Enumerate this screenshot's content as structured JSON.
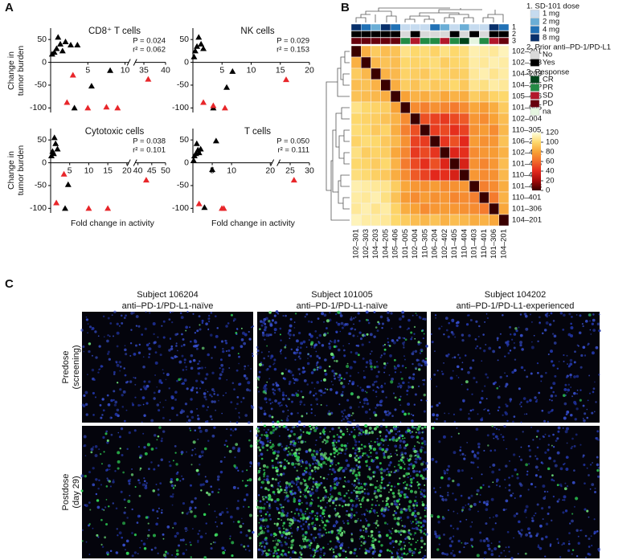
{
  "panel_labels": [
    "A",
    "B",
    "C"
  ],
  "panel_a": {
    "y_label": [
      "Change in",
      "tumor burden"
    ],
    "x_label": "Fold change in activity"
  },
  "chart_data": [
    {
      "type": "scatter",
      "title": "CD8⁺ T cells",
      "stats": [
        "P = 0.024",
        "r² = 0.062"
      ],
      "xlim": [
        0,
        40
      ],
      "xbreak": [
        10.5,
        33
      ],
      "xticks": [
        5,
        10,
        35,
        40
      ],
      "ylim": [
        -110,
        75
      ],
      "yticks": [
        50,
        0,
        -50,
        -100
      ],
      "series": [
        {
          "color": "#000000",
          "x": [
            0.2,
            0.5,
            0.8,
            1.0,
            1.3,
            1.6,
            2.0,
            2.7,
            3.6,
            3.2,
            5.5,
            8.0
          ],
          "values": [
            18,
            22,
            30,
            55,
            40,
            25,
            45,
            38,
            38,
            -100,
            -52,
            -18
          ]
        },
        {
          "color": "#e8262a",
          "x": [
            2.2,
            3.0,
            5.0,
            7.5,
            9.0,
            36
          ],
          "values": [
            -88,
            -28,
            -100,
            -98,
            -100,
            -37
          ]
        }
      ]
    },
    {
      "type": "scatter",
      "title": "NK cells",
      "stats": [
        "P = 0.029",
        "r² = 0.153"
      ],
      "xlim": [
        0,
        20
      ],
      "xticks": [
        5,
        10,
        15,
        20
      ],
      "ylim": [
        -110,
        75
      ],
      "yticks": [
        50,
        0,
        -50,
        -100
      ],
      "series": [
        {
          "color": "#000000",
          "x": [
            0.2,
            0.4,
            0.7,
            1.0,
            1.4,
            1.8,
            5.8,
            6.8,
            3.5
          ],
          "values": [
            12,
            25,
            35,
            55,
            40,
            30,
            -55,
            -20,
            -100
          ]
        },
        {
          "color": "#e8262a",
          "x": [
            1.8,
            3.5,
            5.5,
            16
          ],
          "values": [
            -88,
            -95,
            -100,
            -38
          ]
        }
      ]
    },
    {
      "type": "scatter",
      "title": "Cytotoxic cells",
      "stats": [
        "P = 0.038",
        "r² = 0.101"
      ],
      "xlim": [
        0,
        50
      ],
      "xbreak": [
        20.5,
        39
      ],
      "xticks": [
        5,
        10,
        15,
        20,
        40,
        45,
        50
      ],
      "ylim": [
        -110,
        75
      ],
      "yticks": [
        50,
        0,
        -50,
        -100
      ],
      "series": [
        {
          "color": "#000000",
          "x": [
            0.2,
            0.5,
            0.8,
            1.0,
            1.3,
            1.8,
            3.8,
            4.6
          ],
          "values": [
            15,
            25,
            20,
            55,
            42,
            30,
            -100,
            -48
          ]
        },
        {
          "color": "#e8262a",
          "x": [
            1.5,
            3.5,
            10,
            15,
            43
          ],
          "values": [
            -88,
            -25,
            -100,
            -100,
            -38
          ]
        }
      ]
    },
    {
      "type": "scatter",
      "title": "T cells",
      "stats": [
        "P = 0.050",
        "r² = 0.111"
      ],
      "xlim": [
        0,
        30
      ],
      "xbreak": [
        20.5,
        22
      ],
      "xticks": [
        5,
        10,
        20,
        25,
        30
      ],
      "ylim": [
        -110,
        75
      ],
      "yticks": [
        50,
        0,
        -50,
        -100
      ],
      "series": [
        {
          "color": "#000000",
          "x": [
            0.2,
            0.4,
            0.8,
            1.0,
            1.3,
            1.6,
            2.0,
            5.0,
            6.0,
            3.0
          ],
          "values": [
            5,
            15,
            20,
            42,
            28,
            22,
            30,
            -15,
            48,
            -98
          ]
        },
        {
          "color": "#e8262a",
          "x": [
            1.6,
            7.5,
            8.0,
            26
          ],
          "values": [
            -90,
            -100,
            -100,
            -38
          ]
        }
      ]
    },
    {
      "type": "heatmap",
      "categories": [
        "102–301",
        "102–303",
        "104–203",
        "104–205",
        "105–406",
        "101–005",
        "102–004",
        "110–305",
        "106–204",
        "102–402",
        "101–405",
        "110–404",
        "101–403",
        "110–401",
        "101–306",
        "104–201"
      ],
      "values": [
        [
          0,
          85,
          95,
          90,
          92,
          105,
          100,
          102,
          98,
          104,
          100,
          103,
          112,
          110,
          108,
          114
        ],
        [
          85,
          0,
          88,
          92,
          90,
          100,
          98,
          100,
          102,
          96,
          99,
          101,
          110,
          108,
          112,
          110
        ],
        [
          95,
          88,
          0,
          86,
          88,
          98,
          96,
          94,
          100,
          98,
          95,
          97,
          108,
          112,
          106,
          110
        ],
        [
          90,
          92,
          86,
          0,
          84,
          96,
          92,
          98,
          94,
          96,
          100,
          94,
          106,
          104,
          110,
          108
        ],
        [
          92,
          90,
          88,
          84,
          0,
          80,
          86,
          84,
          88,
          82,
          86,
          84,
          96,
          92,
          98,
          100
        ],
        [
          105,
          100,
          98,
          96,
          80,
          0,
          72,
          68,
          74,
          70,
          66,
          72,
          82,
          78,
          84,
          95
        ],
        [
          100,
          98,
          96,
          92,
          86,
          72,
          0,
          52,
          48,
          45,
          50,
          55,
          76,
          72,
          80,
          90
        ],
        [
          102,
          100,
          94,
          98,
          84,
          68,
          52,
          0,
          46,
          50,
          42,
          48,
          74,
          78,
          72,
          88
        ],
        [
          98,
          102,
          100,
          94,
          88,
          74,
          48,
          46,
          0,
          44,
          52,
          40,
          78,
          74,
          76,
          92
        ],
        [
          104,
          96,
          98,
          96,
          82,
          70,
          45,
          50,
          44,
          0,
          38,
          42,
          72,
          76,
          78,
          86
        ],
        [
          100,
          99,
          95,
          100,
          86,
          66,
          50,
          42,
          52,
          38,
          0,
          36,
          74,
          70,
          76,
          90
        ],
        [
          103,
          101,
          97,
          94,
          84,
          72,
          55,
          48,
          40,
          42,
          36,
          0,
          76,
          72,
          74,
          88
        ],
        [
          112,
          110,
          108,
          106,
          96,
          82,
          76,
          74,
          78,
          72,
          74,
          76,
          0,
          68,
          72,
          84
        ],
        [
          110,
          108,
          112,
          104,
          92,
          78,
          72,
          78,
          74,
          76,
          70,
          72,
          68,
          0,
          66,
          86
        ],
        [
          108,
          112,
          106,
          110,
          98,
          84,
          80,
          72,
          76,
          78,
          76,
          74,
          72,
          66,
          0,
          82
        ],
        [
          114,
          110,
          110,
          108,
          100,
          95,
          90,
          88,
          92,
          86,
          90,
          88,
          84,
          86,
          82,
          0
        ]
      ],
      "zlim": [
        0,
        120
      ],
      "zticks": [
        120,
        100,
        80,
        60,
        40,
        20,
        0
      ],
      "colors": [
        "#3a0000",
        "#a30a0a",
        "#e3281c",
        "#f26a2a",
        "#f8a236",
        "#fdd86c",
        "#ffffdc"
      ],
      "annotations": [
        {
          "label": "1",
          "title": "1. SD-101 dose",
          "levels": [
            {
              "name": "1 mg",
              "color": "#c6dbef"
            },
            {
              "name": "2 mg",
              "color": "#6baed6"
            },
            {
              "name": "4 mg",
              "color": "#2171b5"
            },
            {
              "name": "8 mg",
              "color": "#08306b"
            }
          ],
          "values": [
            "8 mg",
            "4 mg",
            "2 mg",
            "8 mg",
            "4 mg",
            "1 mg",
            "1 mg",
            "1 mg",
            "4 mg",
            "2 mg",
            "1 mg",
            "2 mg",
            "1 mg",
            "1 mg",
            "8 mg",
            "4 mg"
          ]
        },
        {
          "label": "2",
          "title": "2. Prior anti–PD-1/PD-L1",
          "levels": [
            {
              "name": "No",
              "color": "#d9d9d9"
            },
            {
              "name": "Yes",
              "color": "#000000"
            }
          ],
          "values": [
            "Yes",
            "Yes",
            "Yes",
            "Yes",
            "Yes",
            "No",
            "Yes",
            "No",
            "No",
            "No",
            "Yes",
            "No",
            "Yes",
            "No",
            "Yes",
            "Yes"
          ]
        },
        {
          "label": "3",
          "title": "3. Response",
          "levels": [
            {
              "name": "CR",
              "color": "#00441b"
            },
            {
              "name": "PR",
              "color": "#238b45"
            },
            {
              "name": "SD",
              "color": "#b2182b"
            },
            {
              "name": "PD",
              "color": "#67000d"
            },
            {
              "name": "na",
              "color": "#e5f5e0"
            }
          ],
          "values": [
            "PD",
            "PD",
            "PD",
            "PD",
            "PD",
            "PR",
            "SD",
            "PR",
            "PR",
            "SD",
            "PR",
            "CR",
            "na",
            "PR",
            "SD",
            "PD"
          ]
        }
      ]
    }
  ],
  "panel_c": {
    "subjects": [
      {
        "name": "Subject 106204",
        "status": "anti–PD-1/PD-L1-naïve"
      },
      {
        "name": "Subject 101005",
        "status": "anti–PD-1/PD-L1-naïve"
      },
      {
        "name": "Subject 104202",
        "status": "anti–PD-1/PD-L1-experienced"
      }
    ],
    "rows": [
      [
        "Predose",
        "(screening)"
      ],
      [
        "Postdose",
        "(day 29)"
      ]
    ]
  }
}
